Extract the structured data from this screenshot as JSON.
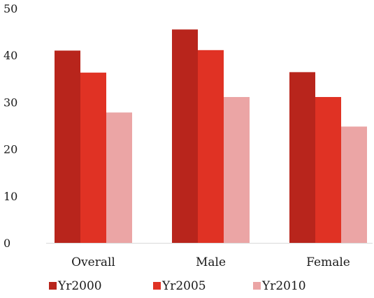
{
  "chart_data": {
    "type": "bar",
    "categories": [
      "Overall",
      "Male",
      "Female"
    ],
    "series": [
      {
        "name": "Yr2000",
        "values": [
          41.0,
          45.5,
          36.4
        ],
        "color": "#b8251c"
      },
      {
        "name": "Yr2005",
        "values": [
          36.3,
          41.1,
          31.1
        ],
        "color": "#e03224"
      },
      {
        "name": "Yr2010",
        "values": [
          27.8,
          31.1,
          24.8
        ],
        "color": "#eba5a5"
      }
    ],
    "yticks": [
      "0",
      "10",
      "20",
      "30",
      "40",
      "50"
    ],
    "ylim": [
      0,
      50
    ],
    "grid": false,
    "legend_position": "bottom",
    "title": "",
    "xlabel": "",
    "ylabel": ""
  }
}
